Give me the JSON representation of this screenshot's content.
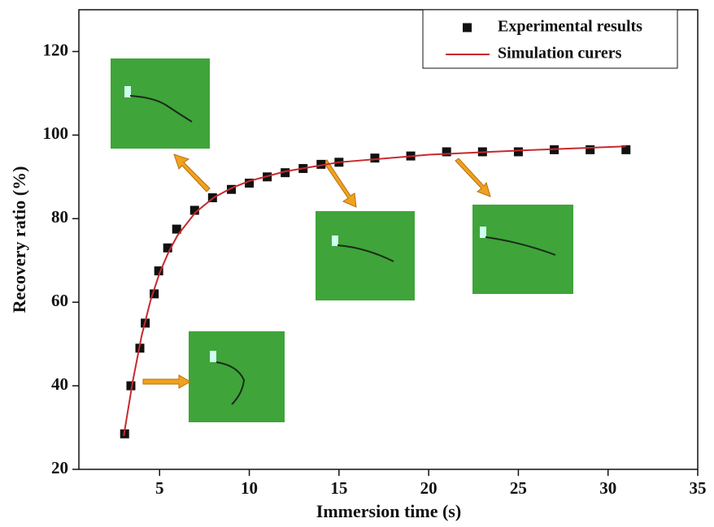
{
  "chart_data": {
    "type": "scatter",
    "xlabel": "Immersion time (s)",
    "ylabel": "Recovery ratio (%)",
    "xlim": [
      0.5,
      35
    ],
    "xticks": [
      5,
      10,
      15,
      20,
      25,
      30,
      35
    ],
    "ylim": [
      20,
      130
    ],
    "yticks": [
      20,
      40,
      60,
      80,
      100,
      120
    ],
    "legend": "upper right",
    "series": [
      {
        "name": "Experimental results",
        "type": "scatter",
        "color": "#111111",
        "x": [
          3.05,
          3.4,
          3.9,
          4.2,
          4.7,
          4.95,
          5.45,
          5.95,
          6.95,
          7.95,
          9,
          10,
          11,
          12,
          13,
          14,
          15,
          17,
          19,
          21,
          23,
          25,
          27,
          29,
          31
        ],
        "values": [
          28.5,
          40,
          49,
          55,
          62,
          67.5,
          73,
          77.5,
          82,
          85,
          87,
          88.5,
          90,
          91,
          92,
          93,
          93.5,
          94.5,
          95,
          96,
          96,
          96,
          96.5,
          96.5,
          96.5
        ]
      },
      {
        "name": "Simulation curers",
        "type": "line",
        "color": "#c8282d",
        "x": [
          3,
          3.5,
          4,
          4.5,
          5,
          5.5,
          6,
          7,
          8,
          9,
          10,
          12,
          15,
          20,
          25,
          31
        ],
        "values": [
          28,
          41,
          52,
          60.5,
          67,
          72,
          76,
          81.5,
          85,
          87.3,
          89,
          91.3,
          93.5,
          95.3,
          96.3,
          97.3
        ]
      }
    ]
  }
}
